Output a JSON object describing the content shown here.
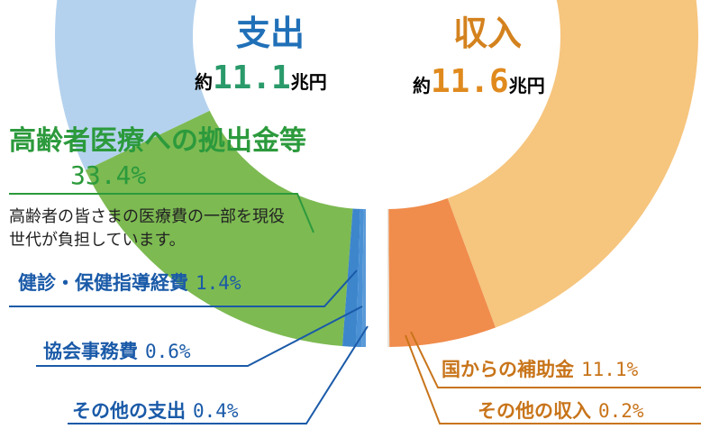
{
  "chart_data": [
    {
      "type": "pie",
      "title": "支出",
      "total_prefix": "約",
      "total": 11.1,
      "total_unit": "兆円",
      "categories": [
        null,
        "高齢者医療への拠出金等",
        "健診・保健指導経費",
        "協会事務費",
        "その他の支出"
      ],
      "values": [
        64.2,
        33.4,
        1.4,
        0.6,
        0.4
      ],
      "value_labels": [
        null,
        "33.4%",
        "1.4%",
        "0.6%",
        "0.4%"
      ],
      "colors": [
        "#b4d2ee",
        "#7dba52",
        "#3d86cc",
        "#4a90d4",
        "#5a9ad8"
      ],
      "annotation": "高齢者の皆さまの医療費の一部を現役世代が負担しています。"
    },
    {
      "type": "pie",
      "title": "収入",
      "total_prefix": "約",
      "total": 11.6,
      "total_unit": "兆円",
      "categories": [
        null,
        "国からの補助金",
        "その他の収入"
      ],
      "values": [
        88.7,
        11.1,
        0.2
      ],
      "value_labels": [
        null,
        "11.1%",
        "0.2%"
      ],
      "colors": [
        "#f6c57e",
        "#f08c4c",
        "#e8e4dc"
      ]
    }
  ]
}
